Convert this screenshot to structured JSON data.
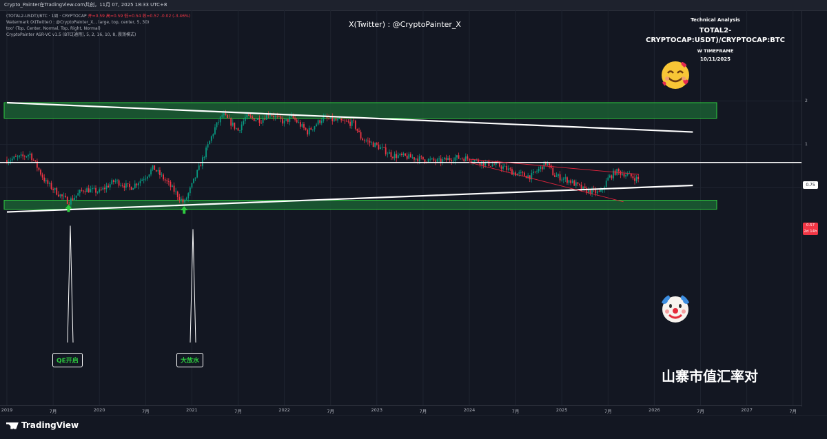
{
  "header": {
    "title_bar": "Crypto_Painter在TradingView.com共创，11月 07, 2025 18:33 UTC+8"
  },
  "legend": {
    "symbol_line_prefix": "(TOTAL2-USDT)/BTC · 1周 · CRYPTOCAP",
    "ohlc": "开=0.59  高=0.59  低=0.54  收=0.57  -0.02 (-3.46%)",
    "watermark_line": "Watermark (X(Twitter) : @CryptoPainter_X, , large, top, center, 5, 30)",
    "too_line": "too' (Top, Center, Normal, Top, Right, Normal)",
    "indicator_line": "CryptoPainter ASR-VC v1.5 (BTC[通用], 5, 2, 16, 10, 8, 震荡模式)"
  },
  "watermark": "X(Twitter) : @CryptoPainter_X",
  "analysis": {
    "heading": "Technical Analysis",
    "pair": "TOTAL2-CRYPTOCAP:USDT)/CRYPTOCAP:BTC",
    "timeframe": "W TIMEFRAME",
    "date": "10/11/2025"
  },
  "price_scale": {
    "ticks": [
      {
        "label": "2",
        "value": 2
      },
      {
        "label": "1",
        "value": 1
      }
    ],
    "level_badge": "0.75",
    "current_price": "0.57",
    "countdown": "2d 14h"
  },
  "annotations": {
    "qe_label": "QE开启",
    "stimulus_label": "大放水",
    "cn_title": "山寨市值汇率对",
    "top_emoji": "smiling-face-with-hearts",
    "bottom_emoji": "clown-face"
  },
  "time_axis": [
    "2019",
    "7月",
    "2020",
    "7月",
    "2021",
    "7月",
    "2022",
    "7月",
    "2023",
    "7月",
    "2024",
    "7月",
    "2025",
    "7月",
    "2026",
    "7月",
    "2027",
    "7月"
  ],
  "branding": {
    "logo_text": "TradingView"
  },
  "colors": {
    "background": "#131722",
    "up": "#089981",
    "down": "#f23645",
    "zone_fill": "#1b5e32",
    "zone_border": "#2ecc40",
    "trendline": "#ffffff",
    "wedge": "#e0243c",
    "arrow": "#2ecc40"
  },
  "chart_data": {
    "type": "candlestick",
    "timeframe": "1W",
    "scale": "log",
    "y_label": "(TOTAL2-USDT)/BTC",
    "ylim": [
      0.33,
      2.3
    ],
    "x_range": [
      "2019-01",
      "2027-09"
    ],
    "series": [
      {
        "name": "price_path",
        "points": [
          [
            "2019-01",
            0.78
          ],
          [
            "2019-03",
            0.82
          ],
          [
            "2019-04",
            0.86
          ],
          [
            "2019-06",
            0.55
          ],
          [
            "2019-08",
            0.44
          ],
          [
            "2019-09",
            0.4
          ],
          [
            "2019-11",
            0.49
          ],
          [
            "2020-01",
            0.47
          ],
          [
            "2020-03",
            0.56
          ],
          [
            "2020-05",
            0.5
          ],
          [
            "2020-07",
            0.6
          ],
          [
            "2020-08",
            0.69
          ],
          [
            "2020-10",
            0.53
          ],
          [
            "2020-12",
            0.39
          ],
          [
            "2021-01",
            0.52
          ],
          [
            "2021-02",
            0.7
          ],
          [
            "2021-04",
            1.3
          ],
          [
            "2021-05",
            1.62
          ],
          [
            "2021-07",
            1.25
          ],
          [
            "2021-08",
            1.55
          ],
          [
            "2021-10",
            1.48
          ],
          [
            "2021-11",
            1.66
          ],
          [
            "2022-01",
            1.42
          ],
          [
            "2022-02",
            1.55
          ],
          [
            "2022-04",
            1.22
          ],
          [
            "2022-06",
            1.53
          ],
          [
            "2022-08",
            1.45
          ],
          [
            "2022-10",
            1.4
          ],
          [
            "2022-11",
            1.1
          ],
          [
            "2023-01",
            0.98
          ],
          [
            "2023-03",
            0.84
          ],
          [
            "2023-05",
            0.82
          ],
          [
            "2023-07",
            0.79
          ],
          [
            "2023-09",
            0.76
          ],
          [
            "2023-11",
            0.81
          ],
          [
            "2024-01",
            0.8
          ],
          [
            "2024-03",
            0.74
          ],
          [
            "2024-05",
            0.71
          ],
          [
            "2024-07",
            0.63
          ],
          [
            "2024-09",
            0.6
          ],
          [
            "2024-11",
            0.75
          ],
          [
            "2024-12",
            0.61
          ],
          [
            "2025-02",
            0.56
          ],
          [
            "2025-04",
            0.48
          ],
          [
            "2025-06",
            0.46
          ],
          [
            "2025-07",
            0.58
          ],
          [
            "2025-08",
            0.65
          ],
          [
            "2025-09",
            0.63
          ],
          [
            "2025-11",
            0.57
          ]
        ]
      },
      {
        "name": "horizontal_level",
        "value": 0.75
      },
      {
        "name": "resistance_zone",
        "range": [
          1.52,
          1.95
        ]
      },
      {
        "name": "support_zone",
        "range": [
          0.355,
          0.41
        ]
      },
      {
        "name": "descending_trendline",
        "points": [
          [
            "2019-01",
            1.95
          ],
          [
            "2026-06",
            1.22
          ]
        ]
      },
      {
        "name": "ascending_trendline",
        "points": [
          [
            "2019-01",
            0.34
          ],
          [
            "2026-06",
            0.52
          ]
        ]
      },
      {
        "name": "wedge_upper",
        "points": [
          [
            "2024-01",
            0.79
          ],
          [
            "2025-11",
            0.62
          ]
        ]
      },
      {
        "name": "wedge_lower",
        "points": [
          [
            "2024-01",
            0.75
          ],
          [
            "2025-09",
            0.4
          ]
        ]
      }
    ],
    "events": [
      {
        "label": "QE开启",
        "date": "2019-09",
        "value": 0.4
      },
      {
        "label": "大放水",
        "date": "2020-12",
        "value": 0.39
      }
    ]
  }
}
